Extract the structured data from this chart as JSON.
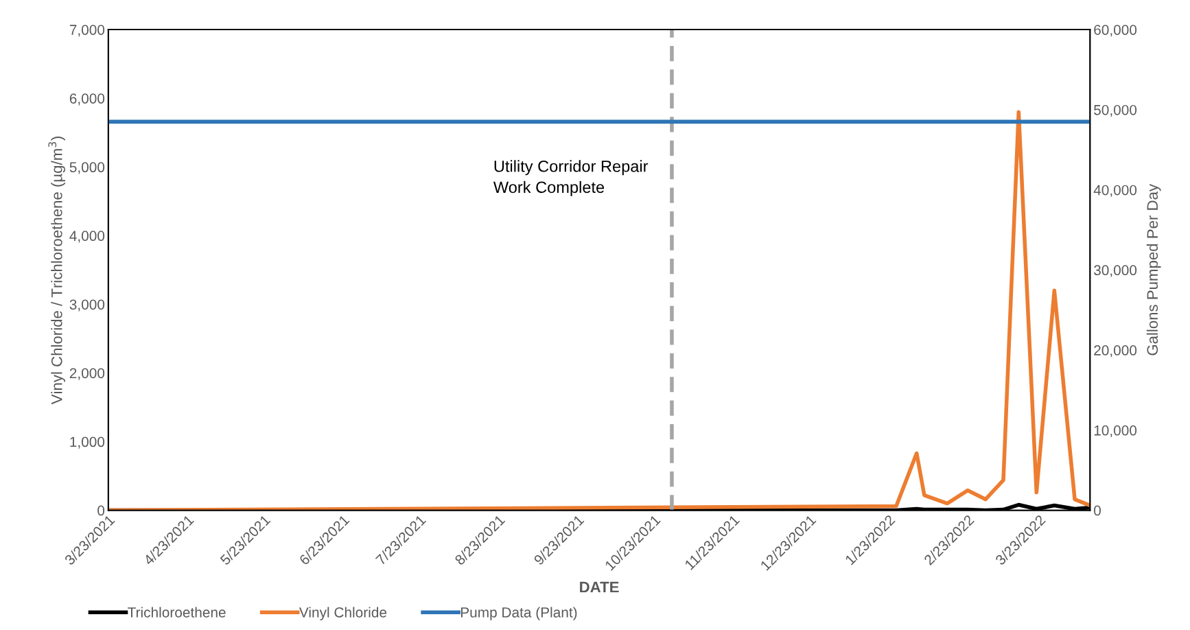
{
  "chart_data": {
    "type": "line",
    "xlabel": "DATE",
    "ylabel": "Vinyl Chloride / Trichloroethene (µg/m$^{3}$)",
    "y2label": "Gallons Pumped Per Day",
    "series": [
      {
        "name": "Trichloroethene",
        "color": "#000000",
        "x": [
          "2021-03-23",
          "2022-01-26",
          "2022-02-03",
          "2022-02-06",
          "2022-02-15",
          "2022-02-23",
          "2022-03-02",
          "2022-03-09",
          "2022-03-15",
          "2022-03-22",
          "2022-03-29",
          "2022-04-06",
          "2022-04-12"
        ],
        "values": [
          0,
          0,
          20,
          10,
          10,
          10,
          0,
          10,
          80,
          20,
          70,
          20,
          40
        ]
      },
      {
        "name": "Vinyl Chloride",
        "color": "#ed7d31",
        "x": [
          "2021-03-23",
          "2022-01-26",
          "2022-02-03",
          "2022-02-06",
          "2022-02-15",
          "2022-02-23",
          "2022-03-02",
          "2022-03-09",
          "2022-03-15",
          "2022-03-22",
          "2022-03-29",
          "2022-04-06",
          "2022-04-12"
        ],
        "values": [
          0,
          60,
          830,
          220,
          100,
          290,
          160,
          440,
          5800,
          260,
          3200,
          160,
          70
        ]
      },
      {
        "name": "Pump Data (Plant)",
        "color": "#2e75b6",
        "axis": "y2",
        "x": [
          "2021-03-23",
          "2022-04-12"
        ],
        "values": [
          48500,
          48500
        ]
      }
    ],
    "xlim": [
      "2021-03-23",
      "2022-04-12"
    ],
    "xticks": [
      {
        "value": "2021-03-23",
        "label": "3/23/2021"
      },
      {
        "value": "2021-04-23",
        "label": "4/23/2021"
      },
      {
        "value": "2021-05-23",
        "label": "5/23/2021"
      },
      {
        "value": "2021-06-23",
        "label": "6/23/2021"
      },
      {
        "value": "2021-07-23",
        "label": "7/23/2021"
      },
      {
        "value": "2021-08-23",
        "label": "8/23/2021"
      },
      {
        "value": "2021-09-23",
        "label": "9/23/2021"
      },
      {
        "value": "2021-10-23",
        "label": "10/23/2021"
      },
      {
        "value": "2021-11-23",
        "label": "11/23/2021"
      },
      {
        "value": "2021-12-23",
        "label": "12/23/2021"
      },
      {
        "value": "2022-01-23",
        "label": "1/23/2022"
      },
      {
        "value": "2022-02-23",
        "label": "2/23/2022"
      },
      {
        "value": "2022-03-23",
        "label": "3/23/2022"
      }
    ],
    "ylim": [
      0,
      7000
    ],
    "yticks": [
      0,
      {
        "value": 1000,
        "label": "1,000"
      },
      {
        "value": 2000,
        "label": "2,000"
      },
      {
        "value": 3000,
        "label": "3,000"
      },
      {
        "value": 4000,
        "label": "4,000"
      },
      {
        "value": 5000,
        "label": "5,000"
      },
      {
        "value": 6000,
        "label": "6,000"
      },
      {
        "value": 7000,
        "label": "7,000"
      }
    ],
    "y2lim": [
      0,
      60000
    ],
    "y2ticks": [
      0,
      {
        "value": 10000,
        "label": "10,000"
      },
      {
        "value": 20000,
        "label": "20,000"
      },
      {
        "value": 30000,
        "label": "30,000"
      },
      {
        "value": 40000,
        "label": "40,000"
      },
      {
        "value": 50000,
        "label": "50,000"
      },
      {
        "value": 60000,
        "label": "60,000"
      }
    ],
    "ref_lines": [
      {
        "axis": "x",
        "value": "2021-10-30",
        "label": "Utility Corridor Repair\nWork Complete",
        "color": "#a6a6a6",
        "line_style": "dashed"
      }
    ],
    "legend": "bottom",
    "grid": false,
    "marker": "none",
    "line_style": "solid"
  }
}
